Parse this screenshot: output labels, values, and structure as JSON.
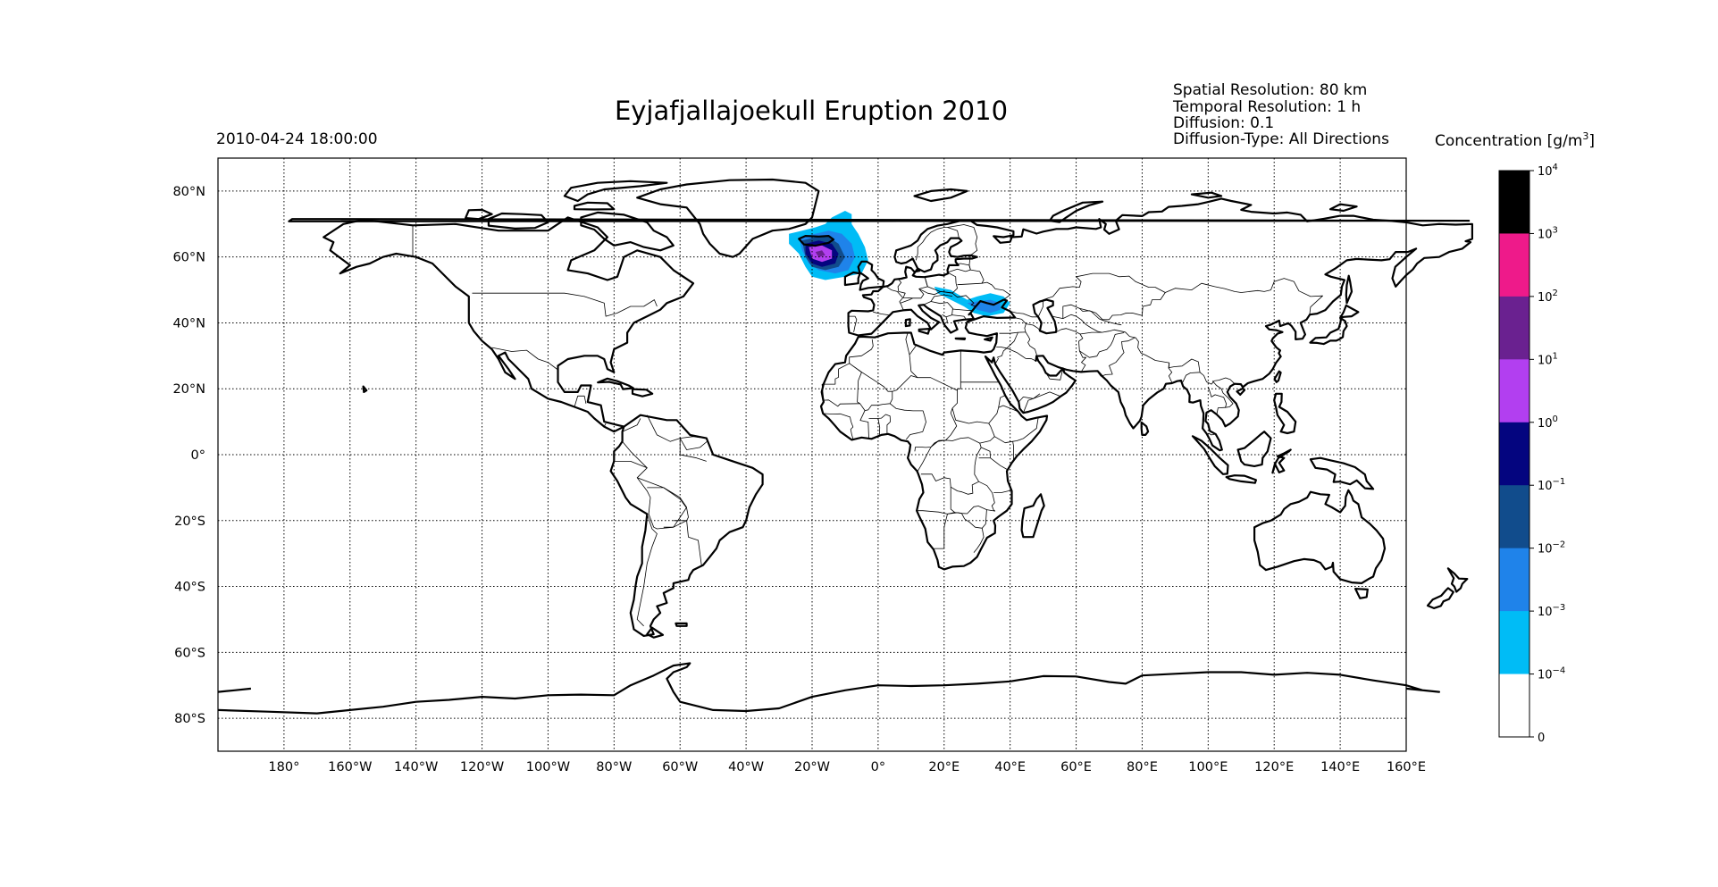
{
  "title": "Eyjafjallajoekull Eruption 2010",
  "timestamp": "2010-04-24 18:00:00",
  "info": {
    "spatial_resolution": "Spatial Resolution: 80 km",
    "temporal_resolution": "Temporal Resolution: 1 h",
    "diffusion": "Diffusion: 0.1",
    "diffusion_type": "Diffusion-Type: All Directions"
  },
  "colorbar": {
    "title": "Concentration [g/m",
    "title_sup": "3",
    "title_end": "]",
    "levels": [
      {
        "base": "10",
        "exp": "4"
      },
      {
        "base": "10",
        "exp": "3"
      },
      {
        "base": "10",
        "exp": "2"
      },
      {
        "base": "10",
        "exp": "1"
      },
      {
        "base": "10",
        "exp": "0"
      },
      {
        "base": "10",
        "exp": "−1"
      },
      {
        "base": "10",
        "exp": "−2"
      },
      {
        "base": "10",
        "exp": "−3"
      },
      {
        "base": "10",
        "exp": "−4"
      },
      {
        "base": "0",
        "exp": ""
      }
    ],
    "colors": [
      "#000000",
      "#ee1a8a",
      "#6a2190",
      "#b23ff0",
      "#04057f",
      "#114c8c",
      "#1f83ea",
      "#00bcf6",
      "#ffffff"
    ]
  },
  "chart_data": {
    "type": "map",
    "projection": "equirectangular",
    "lon_range": [
      -200,
      160
    ],
    "lat_range": [
      -90,
      90
    ],
    "grid": true,
    "x_ticks": [
      {
        "lon": -180,
        "label": "180°"
      },
      {
        "lon": -160,
        "label": "160°W"
      },
      {
        "lon": -140,
        "label": "140°W"
      },
      {
        "lon": -120,
        "label": "120°W"
      },
      {
        "lon": -100,
        "label": "100°W"
      },
      {
        "lon": -80,
        "label": "80°W"
      },
      {
        "lon": -60,
        "label": "60°W"
      },
      {
        "lon": -40,
        "label": "40°W"
      },
      {
        "lon": -20,
        "label": "20°W"
      },
      {
        "lon": 0,
        "label": "0°"
      },
      {
        "lon": 20,
        "label": "20°E"
      },
      {
        "lon": 40,
        "label": "40°E"
      },
      {
        "lon": 60,
        "label": "60°E"
      },
      {
        "lon": 80,
        "label": "80°E"
      },
      {
        "lon": 100,
        "label": "100°E"
      },
      {
        "lon": 120,
        "label": "120°E"
      },
      {
        "lon": 140,
        "label": "140°E"
      },
      {
        "lon": 160,
        "label": "160°E"
      }
    ],
    "y_ticks": [
      {
        "lat": 80,
        "label": "80°N"
      },
      {
        "lat": 60,
        "label": "60°N"
      },
      {
        "lat": 40,
        "label": "40°N"
      },
      {
        "lat": 20,
        "label": "20°N"
      },
      {
        "lat": 0,
        "label": "0°"
      },
      {
        "lat": -20,
        "label": "20°S"
      },
      {
        "lat": -40,
        "label": "40°S"
      },
      {
        "lat": -60,
        "label": "60°S"
      },
      {
        "lat": -80,
        "label": "80°S"
      }
    ],
    "plumes": [
      {
        "name": "north-atlantic-plume",
        "level": ">=1e-4",
        "color": "#00bcf6",
        "polygon": [
          [
            -27,
            67
          ],
          [
            -23,
            68
          ],
          [
            -19,
            69
          ],
          [
            -16,
            70
          ],
          [
            -14,
            72
          ],
          [
            -10,
            74
          ],
          [
            -8,
            73
          ],
          [
            -8,
            70
          ],
          [
            -6,
            67
          ],
          [
            -4,
            63
          ],
          [
            -3,
            59
          ],
          [
            -5,
            55
          ],
          [
            -10,
            54
          ],
          [
            -16,
            53
          ],
          [
            -20,
            54
          ],
          [
            -22,
            57
          ],
          [
            -24,
            61
          ],
          [
            -27,
            64
          ]
        ]
      },
      {
        "name": "north-atlantic-plume",
        "level": ">=1e-3",
        "color": "#1f83ea",
        "polygon": [
          [
            -24,
            66
          ],
          [
            -19,
            67
          ],
          [
            -15,
            68
          ],
          [
            -11,
            67
          ],
          [
            -8,
            64
          ],
          [
            -7,
            60
          ],
          [
            -9,
            56
          ],
          [
            -13,
            55
          ],
          [
            -18,
            56
          ],
          [
            -21,
            58
          ],
          [
            -23,
            62
          ]
        ]
      },
      {
        "name": "north-atlantic-plume",
        "level": ">=1e-2",
        "color": "#114c8c",
        "polygon": [
          [
            -23,
            65
          ],
          [
            -19,
            66
          ],
          [
            -15,
            66
          ],
          [
            -12,
            64
          ],
          [
            -10,
            60
          ],
          [
            -12,
            57
          ],
          [
            -16,
            56
          ],
          [
            -20,
            57
          ],
          [
            -22,
            60
          ]
        ]
      },
      {
        "name": "north-atlantic-plume",
        "level": ">=1e-1",
        "color": "#04057f",
        "polygon": [
          [
            -22,
            64
          ],
          [
            -18,
            65
          ],
          [
            -14,
            64
          ],
          [
            -12,
            61
          ],
          [
            -13,
            58
          ],
          [
            -17,
            57
          ],
          [
            -20,
            58
          ],
          [
            -22,
            61
          ]
        ]
      },
      {
        "name": "north-atlantic-plume",
        "level": ">=1e1",
        "color": "#b23ff0",
        "polygon": [
          [
            -21,
            63
          ],
          [
            -17,
            63.5
          ],
          [
            -14,
            62
          ],
          [
            -14,
            59.5
          ],
          [
            -17,
            58.5
          ],
          [
            -20,
            59.5
          ]
        ]
      },
      {
        "name": "north-atlantic-plume",
        "level": ">=1e2",
        "color": "#6a2190",
        "polygon": [
          [
            -19,
            61.5
          ],
          [
            -17,
            62
          ],
          [
            -16,
            60.5
          ],
          [
            -18,
            60
          ]
        ]
      },
      {
        "name": "black-sea-plume",
        "level": ">=1e-4",
        "color": "#00bcf6",
        "polygon": [
          [
            17,
            51
          ],
          [
            22,
            50
          ],
          [
            27,
            47
          ],
          [
            30,
            48
          ],
          [
            34,
            49
          ],
          [
            38,
            48
          ],
          [
            40,
            46
          ],
          [
            38,
            43
          ],
          [
            33,
            42
          ],
          [
            29,
            43
          ],
          [
            26,
            45
          ],
          [
            22,
            47
          ],
          [
            18,
            49
          ]
        ]
      },
      {
        "name": "black-sea-plume",
        "level": ">=1e-3",
        "color": "#1f83ea",
        "polygon": [
          [
            27,
            46
          ],
          [
            30,
            46.5
          ],
          [
            34,
            47
          ],
          [
            37,
            46
          ],
          [
            37,
            44
          ],
          [
            34,
            43
          ],
          [
            30,
            44
          ]
        ]
      }
    ]
  }
}
